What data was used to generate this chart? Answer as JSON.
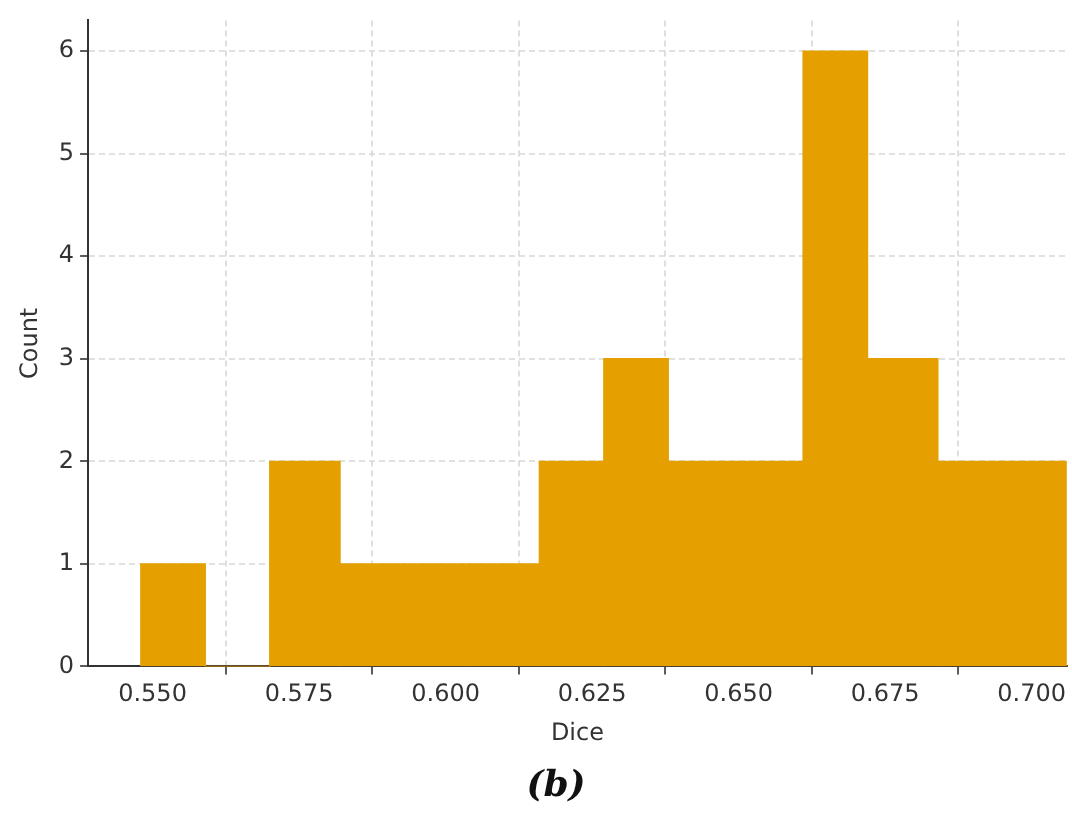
{
  "chart_data": {
    "type": "histogram",
    "xlabel": "Dice",
    "ylabel": "Count",
    "bins": [
      0.548,
      0.559,
      0.57,
      0.582,
      0.593,
      0.604,
      0.616,
      0.627,
      0.638,
      0.65,
      0.661,
      0.672,
      0.684,
      0.695,
      0.706
    ],
    "values": [
      1,
      0,
      2,
      1,
      1,
      1,
      2,
      3,
      2,
      2,
      6,
      3,
      2,
      2
    ],
    "color": "#e5a000",
    "xlim": [
      0.539,
      0.706
    ],
    "xticks": [
      {
        "value": 0.55,
        "label": "0.550"
      },
      {
        "value": 0.575,
        "label": "0.575"
      },
      {
        "value": 0.6,
        "label": "0.600"
      },
      {
        "value": 0.625,
        "label": "0.625"
      },
      {
        "value": 0.65,
        "label": "0.650"
      },
      {
        "value": 0.675,
        "label": "0.675"
      },
      {
        "value": 0.7,
        "label": "0.700"
      }
    ],
    "ylim": [
      0,
      6.3
    ],
    "yticks": [
      0,
      1,
      2,
      3,
      4,
      5,
      6
    ],
    "grid": true,
    "annotations": [
      "(b)"
    ]
  }
}
